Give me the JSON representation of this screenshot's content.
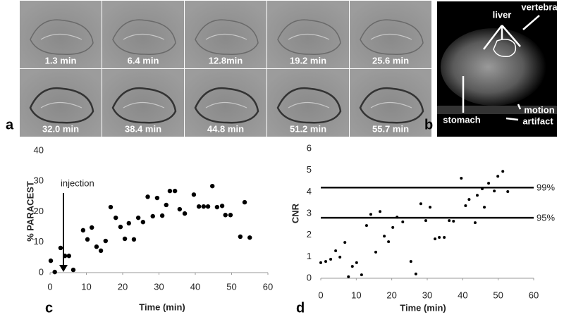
{
  "panel_labels": [
    "a",
    "b",
    "c",
    "d"
  ],
  "panel_a": {
    "times": [
      "1.3 min",
      "6.4 min",
      "12.8min",
      "19.2 min",
      "25.6 min",
      "32.0 min",
      "38.4 min",
      "44.8 min",
      "51.2 min",
      "55.7 min"
    ]
  },
  "panel_b": {
    "labels": {
      "liver": "liver",
      "vertebra": "vertebra",
      "stomach": "stomach",
      "motion": "motion",
      "artifact": "artifact"
    }
  },
  "chart_data": [
    {
      "type": "scatter",
      "xlabel": "Time  (min)",
      "ylabel": "% PARACEST",
      "annotation": "injection",
      "color": "#000000",
      "x": [
        0.2,
        1.3,
        2.9,
        4.1,
        5.2,
        6.4,
        9.1,
        10.3,
        11.5,
        12.8,
        14.0,
        15.3,
        16.7,
        18.1,
        19.4,
        20.6,
        21.7,
        23.1,
        24.3,
        25.6,
        26.9,
        28.3,
        29.5,
        30.9,
        32.0,
        33.0,
        34.4,
        35.7,
        37.1,
        39.6,
        41.0,
        42.3,
        43.5,
        44.7,
        46.0,
        47.4,
        48.3,
        49.7,
        52.4,
        53.6,
        55.0
      ],
      "values": [
        3.9,
        0.2,
        8.1,
        5.5,
        5.5,
        0.9,
        13.9,
        10.9,
        14.8,
        8.5,
        7.2,
        10.4,
        21.5,
        18.0,
        15.0,
        11.1,
        16.2,
        10.9,
        18.0,
        16.6,
        24.9,
        18.5,
        24.5,
        18.7,
        22.2,
        26.8,
        26.8,
        20.8,
        19.4,
        25.6,
        21.7,
        21.7,
        21.7,
        28.4,
        21.5,
        21.9,
        18.9,
        18.9,
        11.8,
        23.1,
        11.5
      ],
      "xlim": [
        0,
        60
      ],
      "xticks": [
        0,
        10,
        20,
        30,
        40,
        50,
        60
      ],
      "ylim": [
        0,
        40
      ],
      "yticks": [
        0,
        10,
        20,
        30,
        40
      ]
    },
    {
      "type": "scatter",
      "xlabel": "Time (min)",
      "ylabel": "CNR",
      "color": "#000000",
      "x": [
        0.0,
        1.4,
        2.8,
        4.2,
        5.4,
        6.8,
        7.8,
        8.9,
        10.1,
        11.5,
        12.9,
        14.1,
        15.5,
        16.7,
        17.9,
        19.1,
        20.3,
        21.5,
        23.1,
        25.4,
        26.8,
        28.2,
        29.6,
        30.8,
        32.2,
        33.4,
        34.8,
        36.2,
        37.4,
        39.6,
        40.8,
        41.8,
        43.5,
        44.1,
        45.5,
        46.1,
        47.3,
        48.9,
        49.9,
        51.3,
        52.7
      ],
      "values": [
        0.72,
        0.78,
        0.88,
        1.27,
        0.98,
        1.66,
        0.07,
        0.55,
        0.72,
        0.16,
        2.44,
        2.96,
        1.21,
        3.09,
        1.95,
        1.69,
        2.35,
        2.83,
        2.61,
        0.78,
        0.2,
        3.45,
        2.67,
        3.29,
        1.82,
        1.89,
        1.89,
        2.67,
        2.64,
        4.63,
        3.36,
        3.65,
        2.57,
        3.84,
        4.14,
        3.29,
        4.4,
        4.04,
        4.72,
        4.95,
        4.01
      ],
      "thresholds": [
        {
          "value": 4.2,
          "label": "99%"
        },
        {
          "value": 2.8,
          "label": "95%"
        }
      ],
      "xlim": [
        0,
        60
      ],
      "xticks": [
        0,
        10,
        20,
        30,
        40,
        50,
        60
      ],
      "ylim": [
        0,
        6
      ],
      "yticks": [
        0,
        1,
        2,
        3,
        4,
        5,
        6
      ]
    }
  ]
}
